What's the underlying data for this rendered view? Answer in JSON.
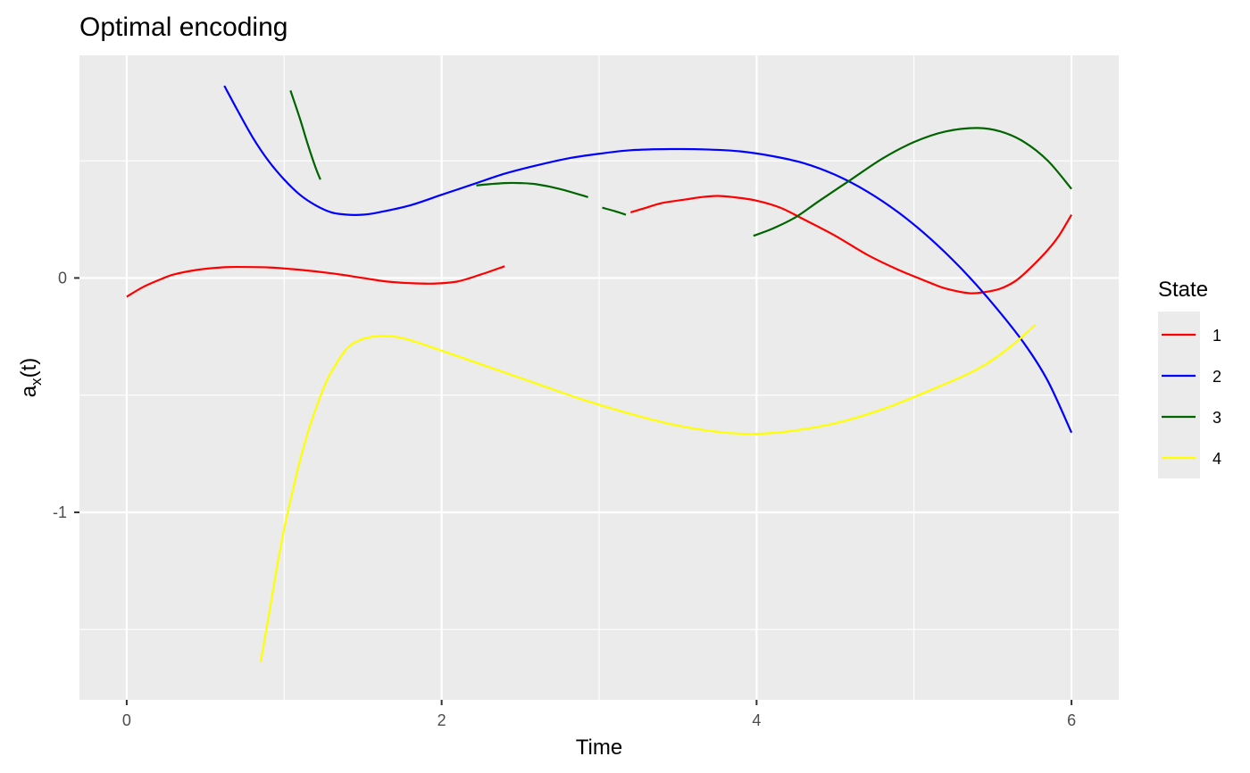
{
  "chart_data": {
    "type": "line",
    "title": "Optimal encoding",
    "xlabel": "Time",
    "ylabel_main": "a",
    "ylabel_sub": "x",
    "ylabel_tail": "(t)",
    "xlim": [
      -0.3,
      6.3
    ],
    "ylim": [
      -1.8,
      0.95
    ],
    "x_ticks": [
      0,
      2,
      4,
      6
    ],
    "x_tick_labels": [
      "0",
      "2",
      "4",
      "6"
    ],
    "x_minor_ticks": [
      1,
      3,
      5
    ],
    "y_ticks": [
      0,
      -1
    ],
    "y_tick_labels": [
      "0",
      "-1"
    ],
    "y_minor_ticks": [
      0.5,
      -0.5,
      -1.5
    ],
    "grid": true,
    "legend_title": "State",
    "legend_position": "right",
    "series": [
      {
        "name": "1",
        "color": "#ff0000",
        "segments": [
          [
            [
              0,
              -0.08
            ],
            [
              0.1,
              -0.04
            ],
            [
              0.2,
              -0.01
            ],
            [
              0.3,
              0.015
            ],
            [
              0.45,
              0.035
            ],
            [
              0.6,
              0.045
            ],
            [
              0.7,
              0.047
            ],
            [
              0.9,
              0.045
            ],
            [
              1.1,
              0.035
            ],
            [
              1.3,
              0.02
            ],
            [
              1.5,
              0.0
            ],
            [
              1.65,
              -0.015
            ],
            [
              1.8,
              -0.022
            ],
            [
              1.95,
              -0.024
            ],
            [
              2.1,
              -0.015
            ],
            [
              2.25,
              0.015
            ],
            [
              2.4,
              0.05
            ]
          ],
          [
            [
              3.2,
              0.28
            ],
            [
              3.3,
              0.3
            ],
            [
              3.4,
              0.32
            ],
            [
              3.55,
              0.335
            ],
            [
              3.65,
              0.345
            ],
            [
              3.75,
              0.35
            ],
            [
              3.85,
              0.345
            ],
            [
              4.0,
              0.33
            ],
            [
              4.15,
              0.3
            ],
            [
              4.3,
              0.25
            ],
            [
              4.5,
              0.18
            ],
            [
              4.7,
              0.1
            ],
            [
              4.9,
              0.035
            ],
            [
              5.1,
              -0.02
            ],
            [
              5.2,
              -0.045
            ],
            [
              5.35,
              -0.065
            ],
            [
              5.45,
              -0.06
            ],
            [
              5.55,
              -0.045
            ],
            [
              5.65,
              -0.01
            ],
            [
              5.75,
              0.05
            ],
            [
              5.85,
              0.12
            ],
            [
              5.92,
              0.18
            ],
            [
              6.0,
              0.27
            ]
          ]
        ]
      },
      {
        "name": "2",
        "color": "#0000ff",
        "segments": [
          [
            [
              0.62,
              0.82
            ],
            [
              0.7,
              0.72
            ],
            [
              0.8,
              0.6
            ],
            [
              0.9,
              0.5
            ],
            [
              1.0,
              0.42
            ],
            [
              1.1,
              0.355
            ],
            [
              1.2,
              0.31
            ],
            [
              1.3,
              0.28
            ],
            [
              1.4,
              0.27
            ],
            [
              1.5,
              0.27
            ],
            [
              1.6,
              0.28
            ],
            [
              1.8,
              0.31
            ],
            [
              2.0,
              0.355
            ],
            [
              2.2,
              0.4
            ],
            [
              2.4,
              0.445
            ],
            [
              2.6,
              0.48
            ],
            [
              2.8,
              0.51
            ],
            [
              3.0,
              0.53
            ],
            [
              3.2,
              0.545
            ],
            [
              3.45,
              0.55
            ],
            [
              3.7,
              0.548
            ],
            [
              3.9,
              0.54
            ],
            [
              4.1,
              0.52
            ],
            [
              4.3,
              0.49
            ],
            [
              4.5,
              0.44
            ],
            [
              4.7,
              0.37
            ],
            [
              4.9,
              0.28
            ],
            [
              5.1,
              0.17
            ],
            [
              5.3,
              0.04
            ],
            [
              5.5,
              -0.11
            ],
            [
              5.7,
              -0.28
            ],
            [
              5.85,
              -0.44
            ],
            [
              6.0,
              -0.66
            ]
          ]
        ]
      },
      {
        "name": "3",
        "color": "#006400",
        "segments": [
          [
            [
              1.04,
              0.8
            ],
            [
              1.1,
              0.68
            ],
            [
              1.15,
              0.57
            ],
            [
              1.2,
              0.47
            ],
            [
              1.23,
              0.42
            ]
          ],
          [
            [
              2.22,
              0.395
            ],
            [
              2.3,
              0.4
            ],
            [
              2.4,
              0.405
            ],
            [
              2.5,
              0.405
            ],
            [
              2.6,
              0.4
            ],
            [
              2.75,
              0.38
            ],
            [
              2.93,
              0.345
            ]
          ],
          [
            [
              3.02,
              0.3
            ],
            [
              3.1,
              0.285
            ],
            [
              3.17,
              0.27
            ]
          ],
          [
            [
              3.98,
              0.18
            ],
            [
              4.1,
              0.21
            ],
            [
              4.25,
              0.26
            ],
            [
              4.4,
              0.33
            ],
            [
              4.6,
              0.42
            ],
            [
              4.8,
              0.51
            ],
            [
              5.0,
              0.58
            ],
            [
              5.2,
              0.625
            ],
            [
              5.4,
              0.64
            ],
            [
              5.55,
              0.625
            ],
            [
              5.7,
              0.58
            ],
            [
              5.85,
              0.5
            ],
            [
              6.0,
              0.38
            ]
          ]
        ]
      },
      {
        "name": "4",
        "color": "#ffff00",
        "segments": [
          [
            [
              0.85,
              -1.64
            ],
            [
              0.9,
              -1.45
            ],
            [
              0.95,
              -1.25
            ],
            [
              1.0,
              -1.07
            ],
            [
              1.05,
              -0.92
            ],
            [
              1.1,
              -0.78
            ],
            [
              1.15,
              -0.66
            ],
            [
              1.2,
              -0.56
            ],
            [
              1.25,
              -0.47
            ],
            [
              1.3,
              -0.4
            ],
            [
              1.4,
              -0.3
            ],
            [
              1.5,
              -0.26
            ],
            [
              1.6,
              -0.248
            ],
            [
              1.7,
              -0.25
            ],
            [
              1.8,
              -0.265
            ],
            [
              2.0,
              -0.31
            ],
            [
              2.3,
              -0.38
            ],
            [
              2.6,
              -0.45
            ],
            [
              2.9,
              -0.52
            ],
            [
              3.2,
              -0.58
            ],
            [
              3.5,
              -0.63
            ],
            [
              3.8,
              -0.66
            ],
            [
              4.0,
              -0.665
            ],
            [
              4.2,
              -0.655
            ],
            [
              4.5,
              -0.62
            ],
            [
              4.8,
              -0.56
            ],
            [
              5.1,
              -0.48
            ],
            [
              5.4,
              -0.39
            ],
            [
              5.6,
              -0.3
            ],
            [
              5.77,
              -0.2
            ]
          ]
        ]
      }
    ]
  }
}
